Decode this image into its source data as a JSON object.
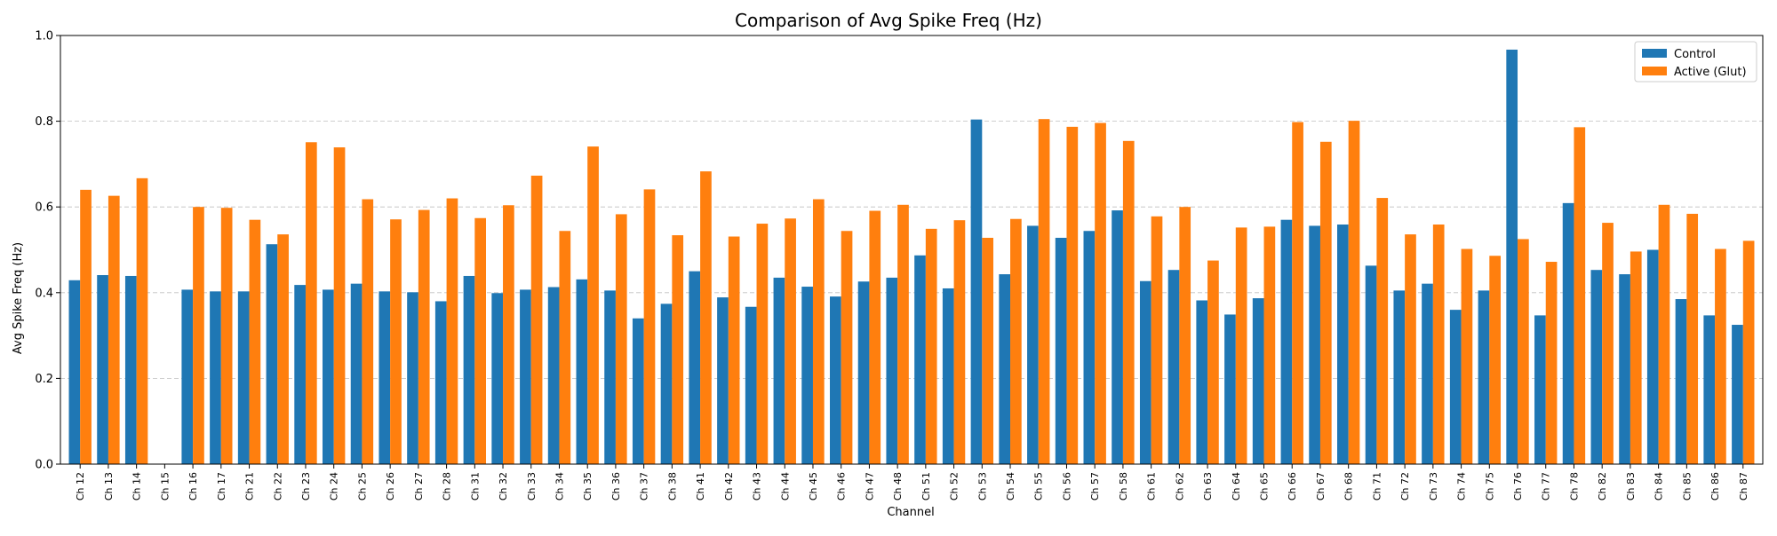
{
  "chart_data": {
    "type": "bar",
    "title": "Comparison of Avg Spike Freq (Hz)",
    "xlabel": "Channel",
    "ylabel": "Avg Spike Freq (Hz)",
    "ylim": [
      0,
      1.0
    ],
    "yticks": [
      0.0,
      0.2,
      0.4,
      0.6,
      0.8,
      1.0
    ],
    "ytick_labels": [
      "0.0",
      "0.2",
      "0.4",
      "0.6",
      "0.8",
      "1.0"
    ],
    "grid": "y-axis dashed",
    "legend_position": "top-right",
    "categories": [
      "Ch 12",
      "Ch 13",
      "Ch 14",
      "Ch 15",
      "Ch 16",
      "Ch 17",
      "Ch 21",
      "Ch 22",
      "Ch 23",
      "Ch 24",
      "Ch 25",
      "Ch 26",
      "Ch 27",
      "Ch 28",
      "Ch 31",
      "Ch 32",
      "Ch 33",
      "Ch 34",
      "Ch 35",
      "Ch 36",
      "Ch 37",
      "Ch 38",
      "Ch 41",
      "Ch 42",
      "Ch 43",
      "Ch 44",
      "Ch 45",
      "Ch 46",
      "Ch 47",
      "Ch 48",
      "Ch 51",
      "Ch 52",
      "Ch 53",
      "Ch 54",
      "Ch 55",
      "Ch 56",
      "Ch 57",
      "Ch 58",
      "Ch 61",
      "Ch 62",
      "Ch 63",
      "Ch 64",
      "Ch 65",
      "Ch 66",
      "Ch 67",
      "Ch 68",
      "Ch 71",
      "Ch 72",
      "Ch 73",
      "Ch 74",
      "Ch 75",
      "Ch 76",
      "Ch 77",
      "Ch 78",
      "Ch 82",
      "Ch 83",
      "Ch 84",
      "Ch 85",
      "Ch 86",
      "Ch 87"
    ],
    "series": [
      {
        "name": "Control",
        "color": "#1f77b4",
        "values": [
          0.429,
          0.441,
          0.439,
          0.0,
          0.407,
          0.403,
          0.403,
          0.513,
          0.418,
          0.407,
          0.421,
          0.403,
          0.401,
          0.38,
          0.439,
          0.399,
          0.407,
          0.413,
          0.431,
          0.405,
          0.34,
          0.374,
          0.45,
          0.389,
          0.367,
          0.435,
          0.414,
          0.391,
          0.426,
          0.435,
          0.487,
          0.41,
          0.804,
          0.443,
          0.556,
          0.528,
          0.544,
          0.592,
          0.427,
          0.453,
          0.382,
          0.349,
          0.387,
          0.57,
          0.556,
          0.559,
          0.463,
          0.405,
          0.421,
          0.36,
          0.405,
          0.967,
          0.347,
          0.609,
          0.453,
          0.443,
          0.5,
          0.385,
          0.347,
          0.325
        ]
      },
      {
        "name": "Active (Glut)",
        "color": "#ff7f0e",
        "values": [
          0.64,
          0.626,
          0.667,
          0.0,
          0.6,
          0.598,
          0.57,
          0.536,
          0.751,
          0.739,
          0.618,
          0.571,
          0.593,
          0.62,
          0.574,
          0.604,
          0.673,
          0.544,
          0.741,
          0.583,
          0.641,
          0.534,
          0.683,
          0.531,
          0.561,
          0.573,
          0.618,
          0.544,
          0.591,
          0.605,
          0.549,
          0.569,
          0.528,
          0.572,
          0.805,
          0.787,
          0.796,
          0.754,
          0.578,
          0.6,
          0.475,
          0.552,
          0.554,
          0.798,
          0.752,
          0.801,
          0.621,
          0.536,
          0.559,
          0.502,
          0.486,
          0.525,
          0.472,
          0.786,
          0.563,
          0.496,
          0.605,
          0.584,
          0.502,
          0.521
        ]
      }
    ]
  }
}
